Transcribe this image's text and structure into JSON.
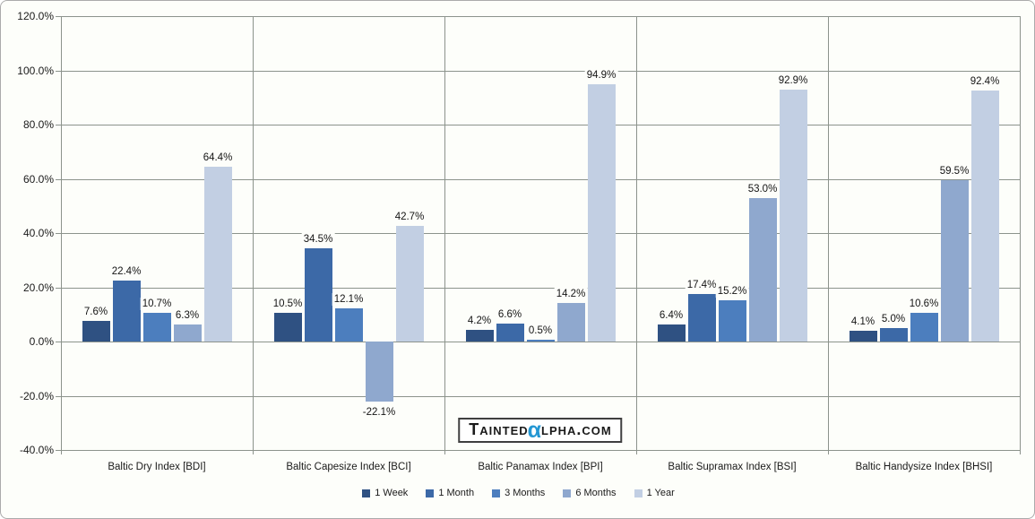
{
  "chart_data": {
    "type": "bar",
    "title": "",
    "categories": [
      "Baltic Dry Index [BDI]",
      "Baltic Capesize Index [BCI]",
      "Baltic Panamax Index [BPI]",
      "Baltic Supramax Index [BSI]",
      "Baltic Handysize Index [BHSI]"
    ],
    "series": [
      {
        "name": "1 Week",
        "color": "#2F5182",
        "values": [
          7.6,
          10.5,
          4.2,
          6.4,
          4.1
        ]
      },
      {
        "name": "1 Month",
        "color": "#3C69A7",
        "values": [
          22.4,
          34.5,
          6.6,
          17.4,
          5.0
        ]
      },
      {
        "name": "3 Months",
        "color": "#4C7EBE",
        "values": [
          10.7,
          12.1,
          0.5,
          15.2,
          10.6
        ]
      },
      {
        "name": "6 Months",
        "color": "#8FA8CE",
        "values": [
          6.3,
          -22.1,
          14.2,
          53.0,
          59.5
        ]
      },
      {
        "name": "1 Year",
        "color": "#C2CFE3",
        "values": [
          64.4,
          42.7,
          94.9,
          92.9,
          92.4
        ]
      }
    ],
    "ylim": [
      -40,
      120
    ],
    "ytick_step": 20,
    "ytick_labels": [
      "120.0%",
      "100.0%",
      "80.0%",
      "60.0%",
      "40.0%",
      "20.0%",
      "0.0%",
      "-20.0%",
      "-40.0%"
    ],
    "xlabel": "",
    "ylabel": "",
    "grid": true,
    "legend_position": "bottom",
    "data_label_format": "one_decimal_percent"
  },
  "watermark": {
    "prefix": "Tainted",
    "alpha": "α",
    "suffix": "lpha.com",
    "alpha_color": "#2497D3"
  },
  "colors": {
    "gridline": "#8C938C",
    "background": "#FDFEFA",
    "label_text": "#1A1A1A"
  }
}
